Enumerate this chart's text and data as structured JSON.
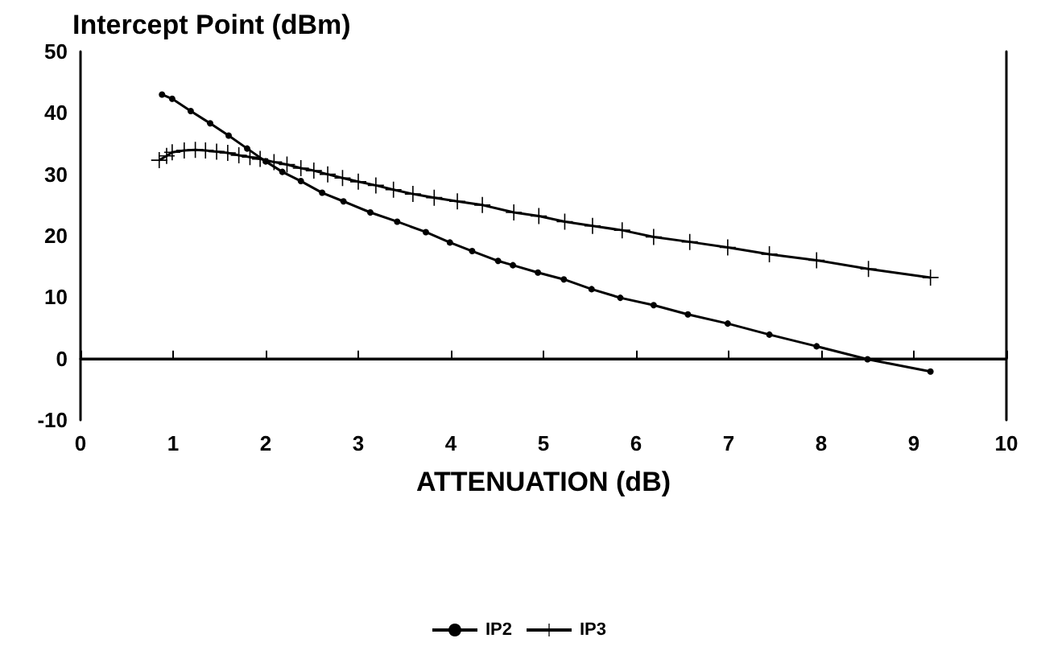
{
  "chart_data": {
    "type": "line",
    "title": "Intercept Point (dBm)",
    "xlabel": "ATTENUATION (dB)",
    "xlim": [
      0,
      10
    ],
    "xticks": [
      0,
      1,
      2,
      3,
      4,
      5,
      6,
      7,
      8,
      9,
      10
    ],
    "ylim": [
      -10,
      50
    ],
    "yticks": [
      -10,
      0,
      10,
      20,
      30,
      40,
      50
    ],
    "grid": false,
    "legend": "bottom",
    "line_style": "solid",
    "ref_lines": [
      {
        "axis": "y",
        "value": 0,
        "color": "#000000"
      }
    ],
    "series": [
      {
        "name": "IP2",
        "color": "#000000",
        "marker": "circle",
        "x": [
          0.88,
          0.99,
          1.19,
          1.4,
          1.6,
          1.8,
          2.0,
          2.18,
          2.38,
          2.61,
          2.84,
          3.13,
          3.42,
          3.73,
          3.99,
          4.23,
          4.51,
          4.67,
          4.94,
          5.22,
          5.52,
          5.83,
          6.19,
          6.56,
          6.99,
          7.44,
          7.95,
          8.5,
          9.18
        ],
        "values": [
          43.0,
          42.3,
          40.3,
          38.3,
          36.3,
          34.2,
          32.1,
          30.4,
          28.9,
          27.0,
          25.6,
          23.8,
          22.3,
          20.6,
          18.9,
          17.5,
          15.9,
          15.2,
          14.0,
          12.9,
          11.3,
          9.9,
          8.7,
          7.2,
          5.7,
          3.9,
          2.0,
          -0.1,
          -2.1
        ]
      },
      {
        "name": "IP3",
        "color": "#000000",
        "marker": "cross",
        "x": [
          0.85,
          0.93,
          0.99,
          1.12,
          1.24,
          1.35,
          1.47,
          1.59,
          1.71,
          1.83,
          1.94,
          2.09,
          2.23,
          2.38,
          2.52,
          2.67,
          2.83,
          3.0,
          3.19,
          3.38,
          3.59,
          3.82,
          4.07,
          4.34,
          4.68,
          4.95,
          5.23,
          5.53,
          5.85,
          6.19,
          6.58,
          6.99,
          7.44,
          7.95,
          8.51,
          9.18
        ],
        "values": [
          32.3,
          33.0,
          33.6,
          33.9,
          34.0,
          33.9,
          33.7,
          33.5,
          33.1,
          32.8,
          32.5,
          32.0,
          31.6,
          31.0,
          30.6,
          30.0,
          29.4,
          28.8,
          28.2,
          27.5,
          26.8,
          26.2,
          25.6,
          25.0,
          23.8,
          23.2,
          22.3,
          21.6,
          20.9,
          19.8,
          19.0,
          18.1,
          17.0,
          16.0,
          14.6,
          13.2
        ]
      }
    ]
  }
}
